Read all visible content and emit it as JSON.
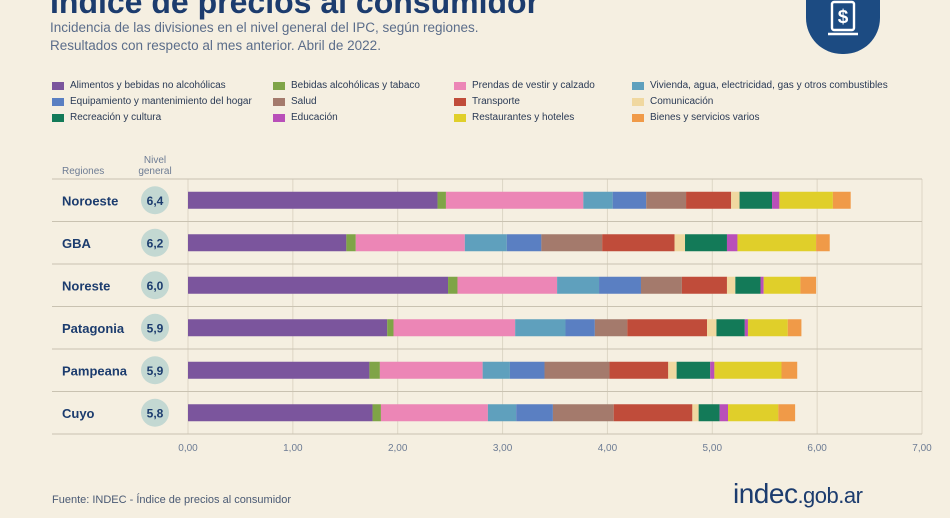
{
  "header": {
    "title": "Índice de precios al consumidor",
    "subtitle_line1": "Incidencia de las divisiones en el nivel general del IPC, según regiones.",
    "subtitle_line2": "Resultados con respecto al mes anterior. Abril de 2022.",
    "badge_icon": "dollar-document-icon"
  },
  "footer": {
    "source": "Fuente: INDEC - Índice de precios al consumidor",
    "logo_main": "indec",
    "logo_domain": ".gob.ar"
  },
  "chart_data": {
    "type": "bar",
    "orientation": "horizontal",
    "stacked": true,
    "column_headers": {
      "regions": "Regiones",
      "general": "Nivel general"
    },
    "categories": [
      "Noroeste",
      "GBA",
      "Noreste",
      "Patagonia",
      "Pampeana",
      "Cuyo"
    ],
    "general_level": [
      "6,4",
      "6,2",
      "6,0",
      "5,9",
      "5,9",
      "5,8"
    ],
    "xlim": [
      0,
      7
    ],
    "x_ticks": [
      "0,00",
      "1,00",
      "2,00",
      "3,00",
      "4,00",
      "5,00",
      "6,00",
      "7,00"
    ],
    "grid": true,
    "legend_position": "top",
    "series": [
      {
        "name": "Alimentos y bebidas no alcohólicas",
        "color": "#7b559d",
        "values": [
          2.38,
          1.51,
          2.48,
          1.9,
          1.73,
          1.76
        ]
      },
      {
        "name": "Bebidas alcohólicas y tabaco",
        "color": "#7fa447",
        "values": [
          0.08,
          0.09,
          0.09,
          0.06,
          0.1,
          0.08
        ]
      },
      {
        "name": "Prendas de vestir y calzado",
        "color": "#ec86b6",
        "values": [
          1.31,
          1.04,
          0.95,
          1.16,
          0.98,
          1.02
        ]
      },
      {
        "name": "Vivienda, agua, electricidad, gas y otros combustibles",
        "color": "#5fa0bd",
        "values": [
          0.28,
          0.4,
          0.4,
          0.48,
          0.26,
          0.27
        ]
      },
      {
        "name": "Equipamiento y mantenimiento del hogar",
        "color": "#5a7fc2",
        "values": [
          0.32,
          0.33,
          0.4,
          0.28,
          0.33,
          0.35
        ]
      },
      {
        "name": "Salud",
        "color": "#a47a6c",
        "values": [
          0.38,
          0.58,
          0.39,
          0.31,
          0.62,
          0.58
        ]
      },
      {
        "name": "Transporte",
        "color": "#c04c3a",
        "values": [
          0.43,
          0.69,
          0.43,
          0.76,
          0.56,
          0.75
        ]
      },
      {
        "name": "Comunicación",
        "color": "#f0d8a0",
        "values": [
          0.08,
          0.1,
          0.08,
          0.09,
          0.08,
          0.06
        ]
      },
      {
        "name": "Recreación y cultura",
        "color": "#137a58",
        "values": [
          0.31,
          0.4,
          0.24,
          0.27,
          0.32,
          0.2
        ]
      },
      {
        "name": "Educación",
        "color": "#b94fb9",
        "values": [
          0.07,
          0.1,
          0.03,
          0.03,
          0.04,
          0.08
        ]
      },
      {
        "name": "Restaurantes y hoteles",
        "color": "#e0cf2a",
        "values": [
          0.51,
          0.75,
          0.35,
          0.38,
          0.64,
          0.48
        ]
      },
      {
        "name": "Bienes y servicios varios",
        "color": "#f09a48",
        "values": [
          0.17,
          0.13,
          0.15,
          0.13,
          0.15,
          0.16
        ]
      }
    ]
  }
}
